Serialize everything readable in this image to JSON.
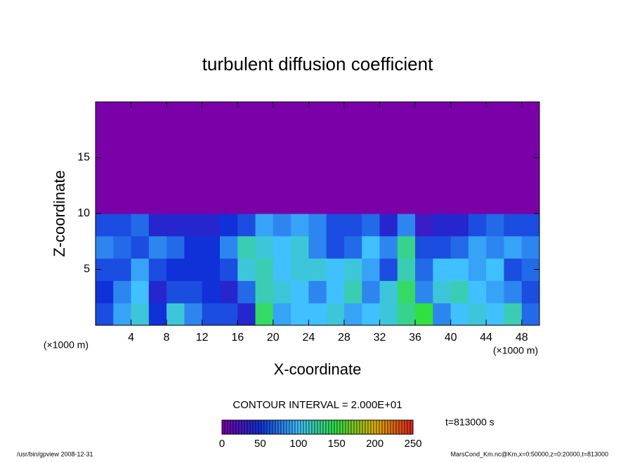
{
  "chart_data": {
    "type": "heatmap",
    "title": "turbulent diffusion coefficient",
    "xlabel": "X-coordinate",
    "ylabel": "Z-coordinate",
    "xunit": "(×1000 m)",
    "yunit": "(×1000 m)",
    "xlim": [
      0,
      50
    ],
    "ylim": [
      0,
      20
    ],
    "xticks": [
      4,
      8,
      12,
      16,
      20,
      24,
      28,
      32,
      36,
      40,
      44,
      48
    ],
    "yticks": [
      5,
      10,
      15
    ],
    "xbins": [
      0,
      2,
      4,
      6,
      8,
      10,
      12,
      14,
      16,
      18,
      20,
      22,
      24,
      26,
      28,
      30,
      32,
      34,
      36,
      38,
      40,
      42,
      44,
      46,
      48,
      50
    ],
    "zbins": [
      0,
      2,
      4,
      6,
      8,
      10,
      12,
      14,
      16,
      18,
      20
    ],
    "values": [
      [
        60,
        90,
        110,
        50,
        110,
        80,
        60,
        60,
        40,
        140,
        90,
        100,
        100,
        110,
        90,
        100,
        110,
        130,
        150,
        80,
        100,
        110,
        100,
        120,
        70
      ],
      [
        50,
        80,
        100,
        40,
        60,
        60,
        50,
        40,
        70,
        120,
        110,
        100,
        80,
        100,
        120,
        80,
        110,
        140,
        80,
        110,
        120,
        100,
        90,
        80,
        60
      ],
      [
        60,
        60,
        90,
        60,
        50,
        50,
        50,
        60,
        110,
        120,
        100,
        110,
        110,
        100,
        110,
        90,
        60,
        120,
        70,
        100,
        100,
        90,
        100,
        60,
        70
      ],
      [
        80,
        70,
        60,
        80,
        70,
        50,
        50,
        80,
        120,
        110,
        100,
        110,
        80,
        60,
        70,
        100,
        80,
        130,
        60,
        60,
        70,
        90,
        80,
        90,
        80
      ],
      [
        60,
        60,
        70,
        40,
        40,
        40,
        40,
        50,
        60,
        90,
        80,
        90,
        80,
        60,
        60,
        70,
        40,
        80,
        30,
        40,
        40,
        60,
        70,
        60,
        60
      ],
      [
        0,
        0,
        0,
        0,
        0,
        0,
        0,
        0,
        0,
        0,
        0,
        0,
        0,
        0,
        0,
        0,
        0,
        0,
        0,
        0,
        0,
        0,
        0,
        0,
        0
      ],
      [
        0,
        0,
        0,
        0,
        0,
        0,
        0,
        0,
        0,
        0,
        0,
        0,
        0,
        0,
        0,
        0,
        0,
        0,
        0,
        0,
        0,
        0,
        0,
        0,
        0
      ],
      [
        0,
        0,
        0,
        0,
        0,
        0,
        0,
        0,
        0,
        0,
        0,
        0,
        0,
        0,
        0,
        0,
        0,
        0,
        0,
        0,
        0,
        0,
        0,
        0,
        0
      ],
      [
        0,
        0,
        0,
        0,
        0,
        0,
        0,
        0,
        0,
        0,
        0,
        0,
        0,
        0,
        0,
        0,
        0,
        0,
        0,
        0,
        0,
        0,
        0,
        0,
        0
      ],
      [
        0,
        0,
        0,
        0,
        0,
        0,
        0,
        0,
        0,
        0,
        0,
        0,
        0,
        0,
        0,
        0,
        0,
        0,
        0,
        0,
        0,
        0,
        0,
        0,
        0
      ]
    ],
    "colorscale": [
      [
        0,
        "#7a00a8"
      ],
      [
        50,
        "#1030d8"
      ],
      [
        100,
        "#40c0ff"
      ],
      [
        150,
        "#30e040"
      ],
      [
        200,
        "#e0b000"
      ],
      [
        250,
        "#e02020"
      ]
    ],
    "colorbar_lim": [
      0,
      250
    ],
    "colorbar_ticks": [
      0,
      50,
      100,
      150,
      200,
      250
    ],
    "contour_note": "CONTOUR INTERVAL = 2.000E+01",
    "time_note": "t=813000 s",
    "footer_left": "/usr/bin/gpview   2008-12-31",
    "footer_right": "MarsCond_Km.nc@Km,x=0:50000,z=0:20000,t=813000"
  }
}
